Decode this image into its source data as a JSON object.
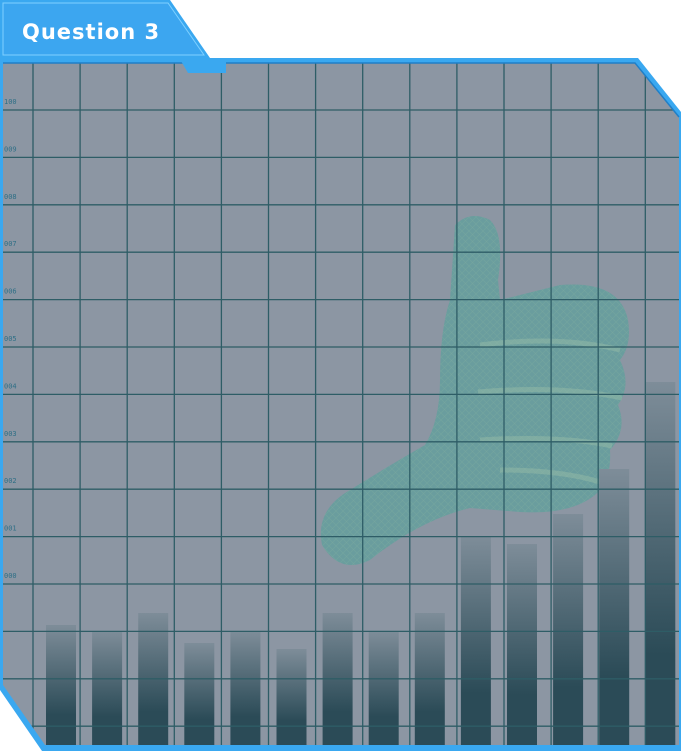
{
  "question_tab": {
    "label": "Question 3"
  },
  "colors": {
    "accent": "#3aa8f0",
    "accent_dark": "#1f7fc8",
    "panel": "#8c96a3",
    "grid": "#2e5d66",
    "bar_top": "#7e8d99",
    "bar_bottom": "#2b4b57"
  },
  "background_art": {
    "icon": "thumbs-up-icon"
  },
  "grid": {
    "columns": 14,
    "rows": 14
  },
  "row_labels": [
    "100",
    "009",
    "008",
    "007",
    "006",
    "005",
    "004",
    "003",
    "002",
    "001",
    "000"
  ],
  "bars": {
    "levels": [
      0.2667,
      0.2533,
      0.2933,
      0.2267,
      0.2533,
      0.2133,
      0.2933,
      0.2533,
      0.2933,
      0.4633,
      0.4467,
      0.5133,
      0.6133,
      0.8067
    ]
  }
}
